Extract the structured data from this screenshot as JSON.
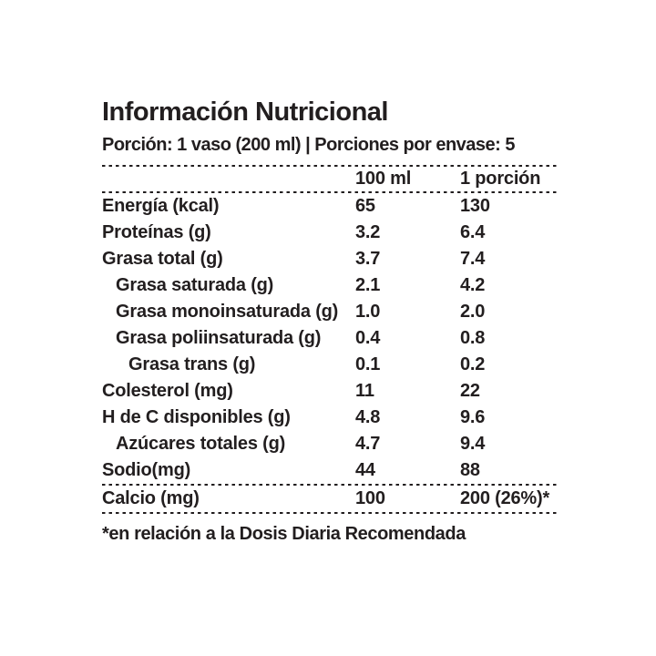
{
  "page": {
    "background_color": "#ffffff",
    "text_color": "#221e1f"
  },
  "label": {
    "title": "Información Nutricional",
    "serving_info": "Porción: 1 vaso (200 ml) | Porciones por envase: 5",
    "footnote": "*en relación a la Dosis Diaria Recomendada"
  },
  "table": {
    "column_headers": {
      "per_100ml": "100 ml",
      "per_serving": "1 porción"
    },
    "rows": [
      {
        "label": "Energía (kcal)",
        "indent": 0,
        "per_100ml": "65",
        "per_serving": "130"
      },
      {
        "label": "Proteínas (g)",
        "indent": 0,
        "per_100ml": "3.2",
        "per_serving": "6.4"
      },
      {
        "label": "Grasa total (g)",
        "indent": 0,
        "per_100ml": "3.7",
        "per_serving": "7.4"
      },
      {
        "label": "Grasa saturada (g)",
        "indent": 1,
        "per_100ml": "2.1",
        "per_serving": "4.2"
      },
      {
        "label": "Grasa monoinsaturada (g)",
        "indent": 1,
        "per_100ml": "1.0",
        "per_serving": "2.0"
      },
      {
        "label": "Grasa poliinsaturada (g)",
        "indent": 1,
        "per_100ml": "0.4",
        "per_serving": "0.8"
      },
      {
        "label": "Grasa trans (g)",
        "indent": 2,
        "per_100ml": "0.1",
        "per_serving": "0.2"
      },
      {
        "label": "Colesterol (mg)",
        "indent": 0,
        "per_100ml": "11",
        "per_serving": "22"
      },
      {
        "label": "H de C disponibles (g)",
        "indent": 0,
        "per_100ml": "4.8",
        "per_serving": "9.6"
      },
      {
        "label": "Azúcares totales (g)",
        "indent": 1,
        "per_100ml": "4.7",
        "per_serving": "9.4"
      },
      {
        "label": "Sodio(mg)",
        "indent": 0,
        "per_100ml": "44",
        "per_serving": "88"
      }
    ],
    "calcium_row": {
      "label": "Calcio (mg)",
      "per_100ml": "100",
      "per_serving": "200 (26%)*"
    }
  }
}
